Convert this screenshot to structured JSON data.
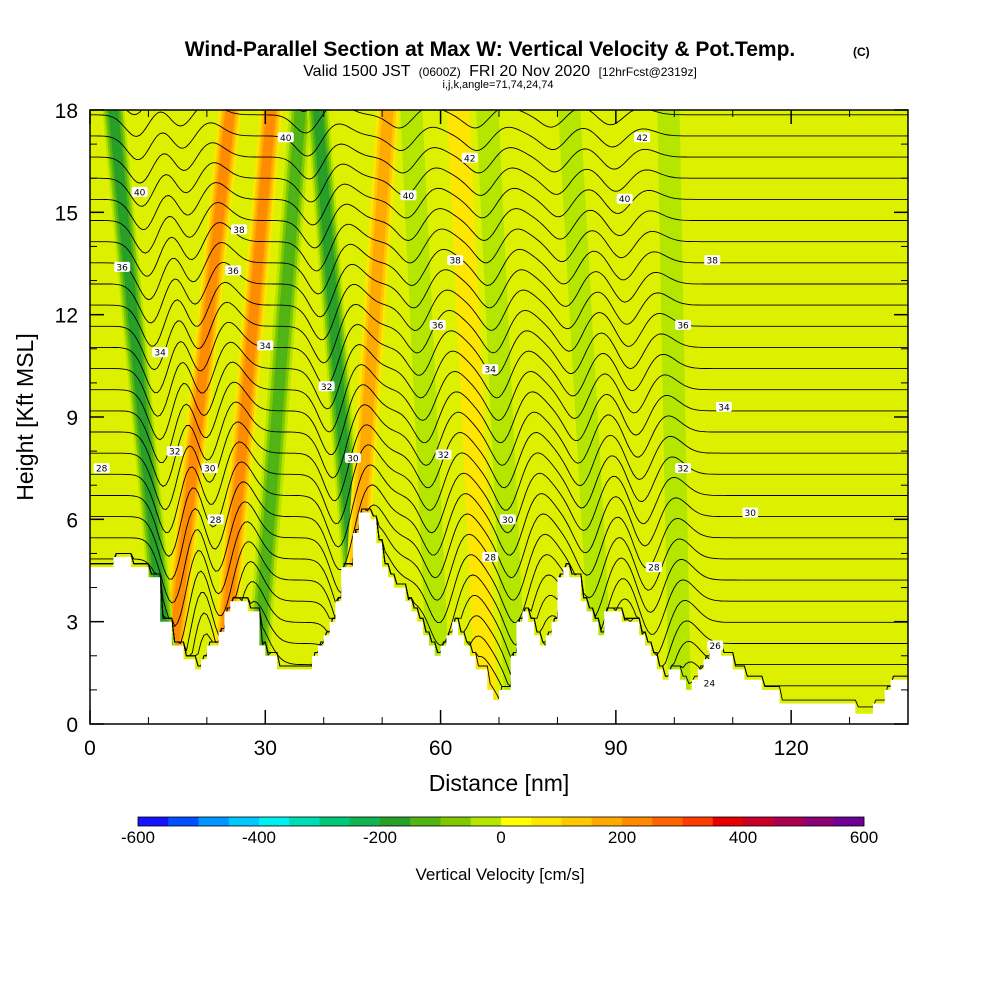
{
  "chart_data": {
    "type": "heatmap",
    "title": "Wind-Parallel Section at Max W: Vertical Velocity & Pot.Temp.",
    "title_mark": "(C)",
    "subtitle_parts": {
      "valid_prefix": "Valid 1500 JST",
      "utc": "(0600Z)",
      "date": "FRI 20 Nov 2020",
      "forecast": "[12hrFcst@2319z]"
    },
    "params": "i,j,k,angle=71,74,24,74",
    "xlabel": "Distance [nm]",
    "ylabel": "Height [Kft MSL]",
    "xlim": [
      0,
      140
    ],
    "ylim": [
      0,
      18
    ],
    "x_ticks": [
      "0",
      "30",
      "60",
      "90",
      "120"
    ],
    "y_ticks": [
      "0",
      "3",
      "6",
      "9",
      "12",
      "15",
      "18"
    ],
    "colorbar": {
      "label": "Vertical Velocity [cm/s]",
      "range": [
        -600,
        600
      ],
      "ticks": [
        "-600",
        "-400",
        "-200",
        "0",
        "200",
        "400",
        "600"
      ],
      "colors": [
        "#1414ff",
        "#0050ff",
        "#0096ff",
        "#00c8ff",
        "#00f0f0",
        "#00dcb4",
        "#00c878",
        "#10b450",
        "#28a028",
        "#50b414",
        "#82c800",
        "#b4e600",
        "#ffff00",
        "#ffe600",
        "#ffc800",
        "#ffaa00",
        "#ff8c00",
        "#ff6400",
        "#ff3c00",
        "#e60000",
        "#c80028",
        "#aa0050",
        "#8c0078",
        "#6e0096"
      ]
    },
    "shading_bands": [
      {
        "x_bottom": 13,
        "x_top": 24,
        "value": 200
      },
      {
        "x_bottom": 14,
        "x_top": 4,
        "value": -200
      },
      {
        "x_bottom": 22,
        "x_top": 31,
        "value": 200
      },
      {
        "x_bottom": 28,
        "x_top": 36,
        "value": -160
      },
      {
        "x_bottom": 47,
        "x_top": 39,
        "value": -220
      },
      {
        "x_bottom": 44,
        "x_top": 51,
        "value": 150
      },
      {
        "x_bottom": 60,
        "x_top": 55,
        "value": -70
      },
      {
        "x_bottom": 68,
        "x_top": 63,
        "value": 80
      },
      {
        "x_bottom": 73,
        "x_top": 68,
        "value": -90
      },
      {
        "x_bottom": 88,
        "x_top": 82,
        "value": -90
      },
      {
        "x_bottom": 101,
        "x_top": 99,
        "value": -50
      }
    ],
    "terrain": {
      "x": [
        0,
        4,
        4,
        7,
        7,
        10,
        10,
        12,
        12,
        14,
        14,
        16,
        16,
        18,
        18,
        19,
        19,
        20,
        20,
        22,
        22,
        23,
        23,
        24,
        24,
        27,
        27,
        29,
        29,
        30,
        30,
        32,
        32,
        38,
        38,
        39,
        39,
        40,
        40,
        41,
        41,
        42,
        42,
        43,
        43,
        45,
        45,
        46,
        46,
        48,
        48,
        49,
        49,
        50,
        50,
        51,
        51,
        52,
        52,
        54,
        54,
        55,
        55,
        56,
        56,
        57,
        57,
        58,
        58,
        59,
        59,
        60,
        60,
        61,
        61,
        62,
        62,
        63,
        63,
        64,
        64,
        65,
        65,
        66,
        66,
        68,
        68,
        69,
        69,
        70,
        70,
        72,
        72,
        73,
        73,
        74,
        74,
        75,
        75,
        76,
        76,
        77,
        77,
        78,
        78,
        79,
        79,
        80,
        80,
        81,
        81,
        82,
        82,
        84,
        84,
        85,
        85,
        86,
        86,
        87,
        87,
        88,
        88,
        91,
        91,
        94,
        94,
        95,
        95,
        96,
        96,
        97,
        97,
        98,
        98,
        99,
        99,
        101,
        101,
        102,
        102,
        103,
        103,
        104,
        104,
        105,
        105,
        106,
        106,
        108,
        108,
        110,
        110,
        112,
        112,
        115,
        115,
        118,
        118,
        131,
        131,
        134,
        134,
        136,
        136,
        137,
        137,
        140
      ],
      "y": [
        4.6,
        4.6,
        4.9,
        4.9,
        4.6,
        4.6,
        4.3,
        4.3,
        3.0,
        3.0,
        2.3,
        2.3,
        1.9,
        1.9,
        1.6,
        1.6,
        1.9,
        1.9,
        2.3,
        2.3,
        2.7,
        2.7,
        3.3,
        3.3,
        3.6,
        3.6,
        3.3,
        3.3,
        2.3,
        2.3,
        2.0,
        2.0,
        1.6,
        1.6,
        2.0,
        2.0,
        2.3,
        2.3,
        2.6,
        2.6,
        3.0,
        3.0,
        3.6,
        3.6,
        4.6,
        4.6,
        5.6,
        5.6,
        6.2,
        6.2,
        6.0,
        6.0,
        5.3,
        5.3,
        4.6,
        4.6,
        4.3,
        4.3,
        4.0,
        4.0,
        3.6,
        3.6,
        3.3,
        3.3,
        3.0,
        3.0,
        2.6,
        2.6,
        2.3,
        2.3,
        2.0,
        2.0,
        2.3,
        2.3,
        2.6,
        2.6,
        3.0,
        3.0,
        2.6,
        2.6,
        2.3,
        2.3,
        2.0,
        2.0,
        1.6,
        1.6,
        1.0,
        1.0,
        0.7,
        0.7,
        1.0,
        1.0,
        2.0,
        2.0,
        3.0,
        3.0,
        3.3,
        3.3,
        3.0,
        3.0,
        2.6,
        2.6,
        2.3,
        2.3,
        2.6,
        2.6,
        3.0,
        3.0,
        4.3,
        4.3,
        4.6,
        4.6,
        4.3,
        4.3,
        3.6,
        3.6,
        3.3,
        3.3,
        3.0,
        3.0,
        2.6,
        2.6,
        3.3,
        3.3,
        3.0,
        3.0,
        2.6,
        2.6,
        2.3,
        2.3,
        2.0,
        2.0,
        1.6,
        1.6,
        1.3,
        1.3,
        1.6,
        1.6,
        1.3,
        1.3,
        1.0,
        1.0,
        1.3,
        1.3,
        1.6,
        1.6,
        1.9,
        1.9,
        2.3,
        2.3,
        2.0,
        2.0,
        1.6,
        1.6,
        1.3,
        1.3,
        1.0,
        1.0,
        0.6,
        0.6,
        0.3,
        0.3,
        0.6,
        0.6,
        1.0,
        1.0,
        1.3,
        1.3,
        1.0,
        1.0
      ]
    },
    "isentropes": {
      "levels": [
        24,
        26,
        28,
        30,
        32,
        34,
        36,
        38,
        40,
        42
      ],
      "labels": [
        {
          "text": "24",
          "x": 106,
          "y": 1.2
        },
        {
          "text": "26",
          "x": 107,
          "y": 2.3
        },
        {
          "text": "28",
          "x": 68.5,
          "y": 4.9
        },
        {
          "text": "28",
          "x": 96.5,
          "y": 4.6
        },
        {
          "text": "28",
          "x": 21.5,
          "y": 6.0
        },
        {
          "text": "28",
          "x": 2,
          "y": 7.5
        },
        {
          "text": "30",
          "x": 71.5,
          "y": 6.0
        },
        {
          "text": "30",
          "x": 113,
          "y": 6.2
        },
        {
          "text": "30",
          "x": 20.5,
          "y": 7.5
        },
        {
          "text": "30",
          "x": 45,
          "y": 7.8
        },
        {
          "text": "32",
          "x": 14.5,
          "y": 8.0
        },
        {
          "text": "32",
          "x": 60.5,
          "y": 7.9
        },
        {
          "text": "32",
          "x": 101.5,
          "y": 7.5
        },
        {
          "text": "32",
          "x": 40.5,
          "y": 9.9
        },
        {
          "text": "34",
          "x": 12,
          "y": 10.9
        },
        {
          "text": "34",
          "x": 30,
          "y": 11.1
        },
        {
          "text": "34",
          "x": 68.5,
          "y": 10.4
        },
        {
          "text": "34",
          "x": 108.5,
          "y": 9.3
        },
        {
          "text": "36",
          "x": 5.5,
          "y": 13.4
        },
        {
          "text": "36",
          "x": 24.5,
          "y": 13.3
        },
        {
          "text": "36",
          "x": 59.5,
          "y": 11.7
        },
        {
          "text": "36",
          "x": 101.5,
          "y": 11.7
        },
        {
          "text": "38",
          "x": 25.5,
          "y": 14.5
        },
        {
          "text": "38",
          "x": 62.5,
          "y": 13.6
        },
        {
          "text": "38",
          "x": 106.5,
          "y": 13.6
        },
        {
          "text": "40",
          "x": 8.5,
          "y": 15.6
        },
        {
          "text": "40",
          "x": 33.5,
          "y": 17.2
        },
        {
          "text": "40",
          "x": 54.5,
          "y": 15.5
        },
        {
          "text": "40",
          "x": 91.5,
          "y": 15.4
        },
        {
          "text": "42",
          "x": 65,
          "y": 16.6
        },
        {
          "text": "42",
          "x": 94.5,
          "y": 17.2
        }
      ]
    }
  }
}
